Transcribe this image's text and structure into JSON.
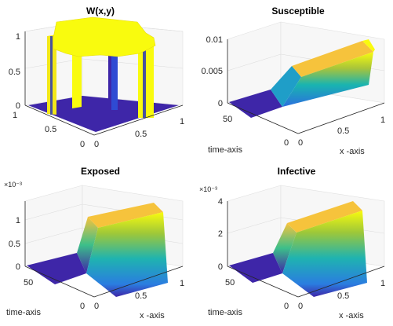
{
  "figure": {
    "background": "#ffffff"
  },
  "chart_data": [
    {
      "type": "surface",
      "title": "W(x,y)",
      "xlabel": "",
      "ylabel": "",
      "zlim": [
        0,
        1
      ],
      "zticks": [
        "0",
        "0.5",
        "1"
      ],
      "xticks": [
        "0",
        "0.5",
        "1"
      ],
      "yticks": [
        "0",
        "0.5",
        "1"
      ],
      "colors": {
        "low": "#3e26a8",
        "high": "#f9fb0e"
      },
      "description_values": {
        "plateau_height": 1,
        "base_height": 0
      }
    },
    {
      "type": "surface",
      "title": "Susceptible",
      "xlabel": "x -axis",
      "ylabel": "time-axis",
      "zlim": [
        0,
        0.01
      ],
      "zticks": [
        "0",
        "0.005",
        "0.01"
      ],
      "xticks": [
        "0",
        "0.5",
        "1"
      ],
      "yticks": [
        "0",
        "50"
      ],
      "wave_max": 0.0097
    },
    {
      "type": "surface",
      "title": "Exposed",
      "xlabel": "x -axis",
      "ylabel": "time-axis",
      "exponent": "×10⁻³",
      "zlim": [
        0,
        0.0013
      ],
      "zticks": [
        "0",
        "0.5",
        "1"
      ],
      "xticks": [
        "0",
        "0.5",
        "1"
      ],
      "yticks": [
        "0",
        "50"
      ],
      "wave_max": 0.00125
    },
    {
      "type": "surface",
      "title": "Infective",
      "xlabel": "x -axis",
      "ylabel": "time-axis",
      "exponent": "×10⁻³",
      "zlim": [
        0,
        0.004
      ],
      "zticks": [
        "0",
        "2",
        "4"
      ],
      "xticks": [
        "0",
        "0.5",
        "1"
      ],
      "yticks": [
        "0",
        "50"
      ],
      "wave_max": 0.0033
    }
  ]
}
